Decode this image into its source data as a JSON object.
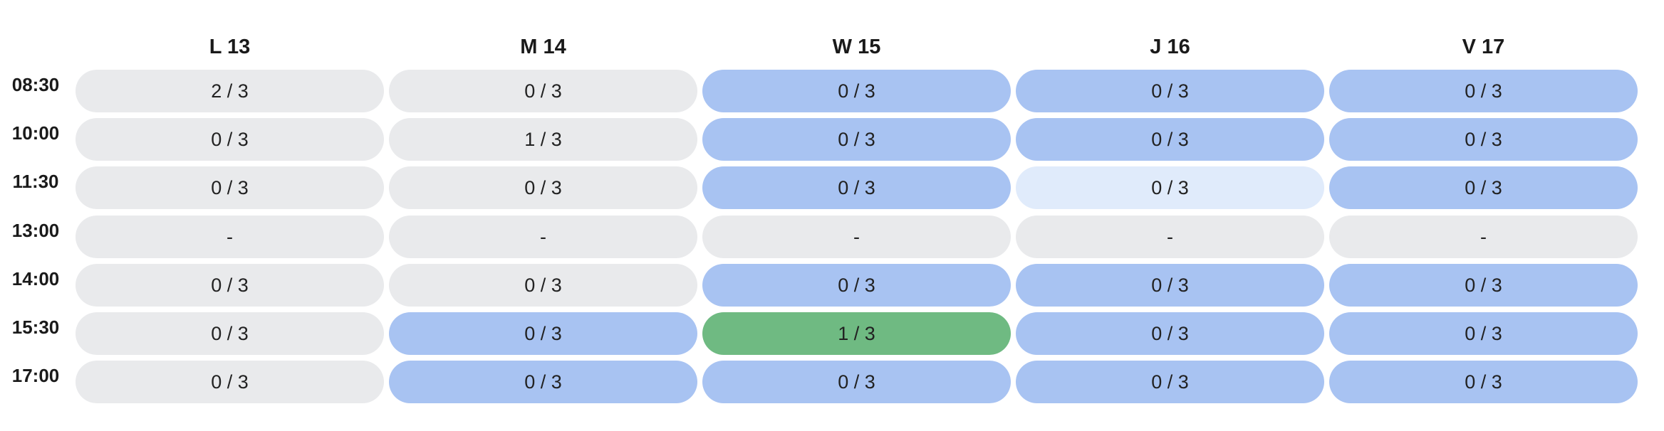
{
  "colors": {
    "closed": "#e9eaec",
    "open": "#a8c3f2",
    "light": "#e0ebfb",
    "booked": "#6fba82"
  },
  "days": [
    "L 13",
    "M 14",
    "W 15",
    "J 16",
    "V 17"
  ],
  "times": [
    "08:30",
    "10:00",
    "11:30",
    "13:00",
    "14:00",
    "15:30",
    "17:00"
  ],
  "slots": [
    [
      {
        "text": "2 / 3",
        "state": "closed"
      },
      {
        "text": "0 / 3",
        "state": "closed"
      },
      {
        "text": "0 / 3",
        "state": "open"
      },
      {
        "text": "0 / 3",
        "state": "open"
      },
      {
        "text": "0 / 3",
        "state": "open"
      }
    ],
    [
      {
        "text": "0 / 3",
        "state": "closed"
      },
      {
        "text": "1 / 3",
        "state": "closed"
      },
      {
        "text": "0 / 3",
        "state": "open"
      },
      {
        "text": "0 / 3",
        "state": "open"
      },
      {
        "text": "0 / 3",
        "state": "open"
      }
    ],
    [
      {
        "text": "0 / 3",
        "state": "closed"
      },
      {
        "text": "0 / 3",
        "state": "closed"
      },
      {
        "text": "0 / 3",
        "state": "open"
      },
      {
        "text": "0 / 3",
        "state": "light"
      },
      {
        "text": "0 / 3",
        "state": "open"
      }
    ],
    [
      {
        "text": "-",
        "state": "closed"
      },
      {
        "text": "-",
        "state": "closed"
      },
      {
        "text": "-",
        "state": "closed"
      },
      {
        "text": "-",
        "state": "closed"
      },
      {
        "text": "-",
        "state": "closed"
      }
    ],
    [
      {
        "text": "0 / 3",
        "state": "closed"
      },
      {
        "text": "0 / 3",
        "state": "closed"
      },
      {
        "text": "0 / 3",
        "state": "open"
      },
      {
        "text": "0 / 3",
        "state": "open"
      },
      {
        "text": "0 / 3",
        "state": "open"
      }
    ],
    [
      {
        "text": "0 / 3",
        "state": "closed"
      },
      {
        "text": "0 / 3",
        "state": "open"
      },
      {
        "text": "1 / 3",
        "state": "booked"
      },
      {
        "text": "0 / 3",
        "state": "open"
      },
      {
        "text": "0 / 3",
        "state": "open"
      }
    ],
    [
      {
        "text": "0 / 3",
        "state": "closed"
      },
      {
        "text": "0 / 3",
        "state": "open"
      },
      {
        "text": "0 / 3",
        "state": "open"
      },
      {
        "text": "0 / 3",
        "state": "open"
      },
      {
        "text": "0 / 3",
        "state": "open"
      }
    ]
  ]
}
